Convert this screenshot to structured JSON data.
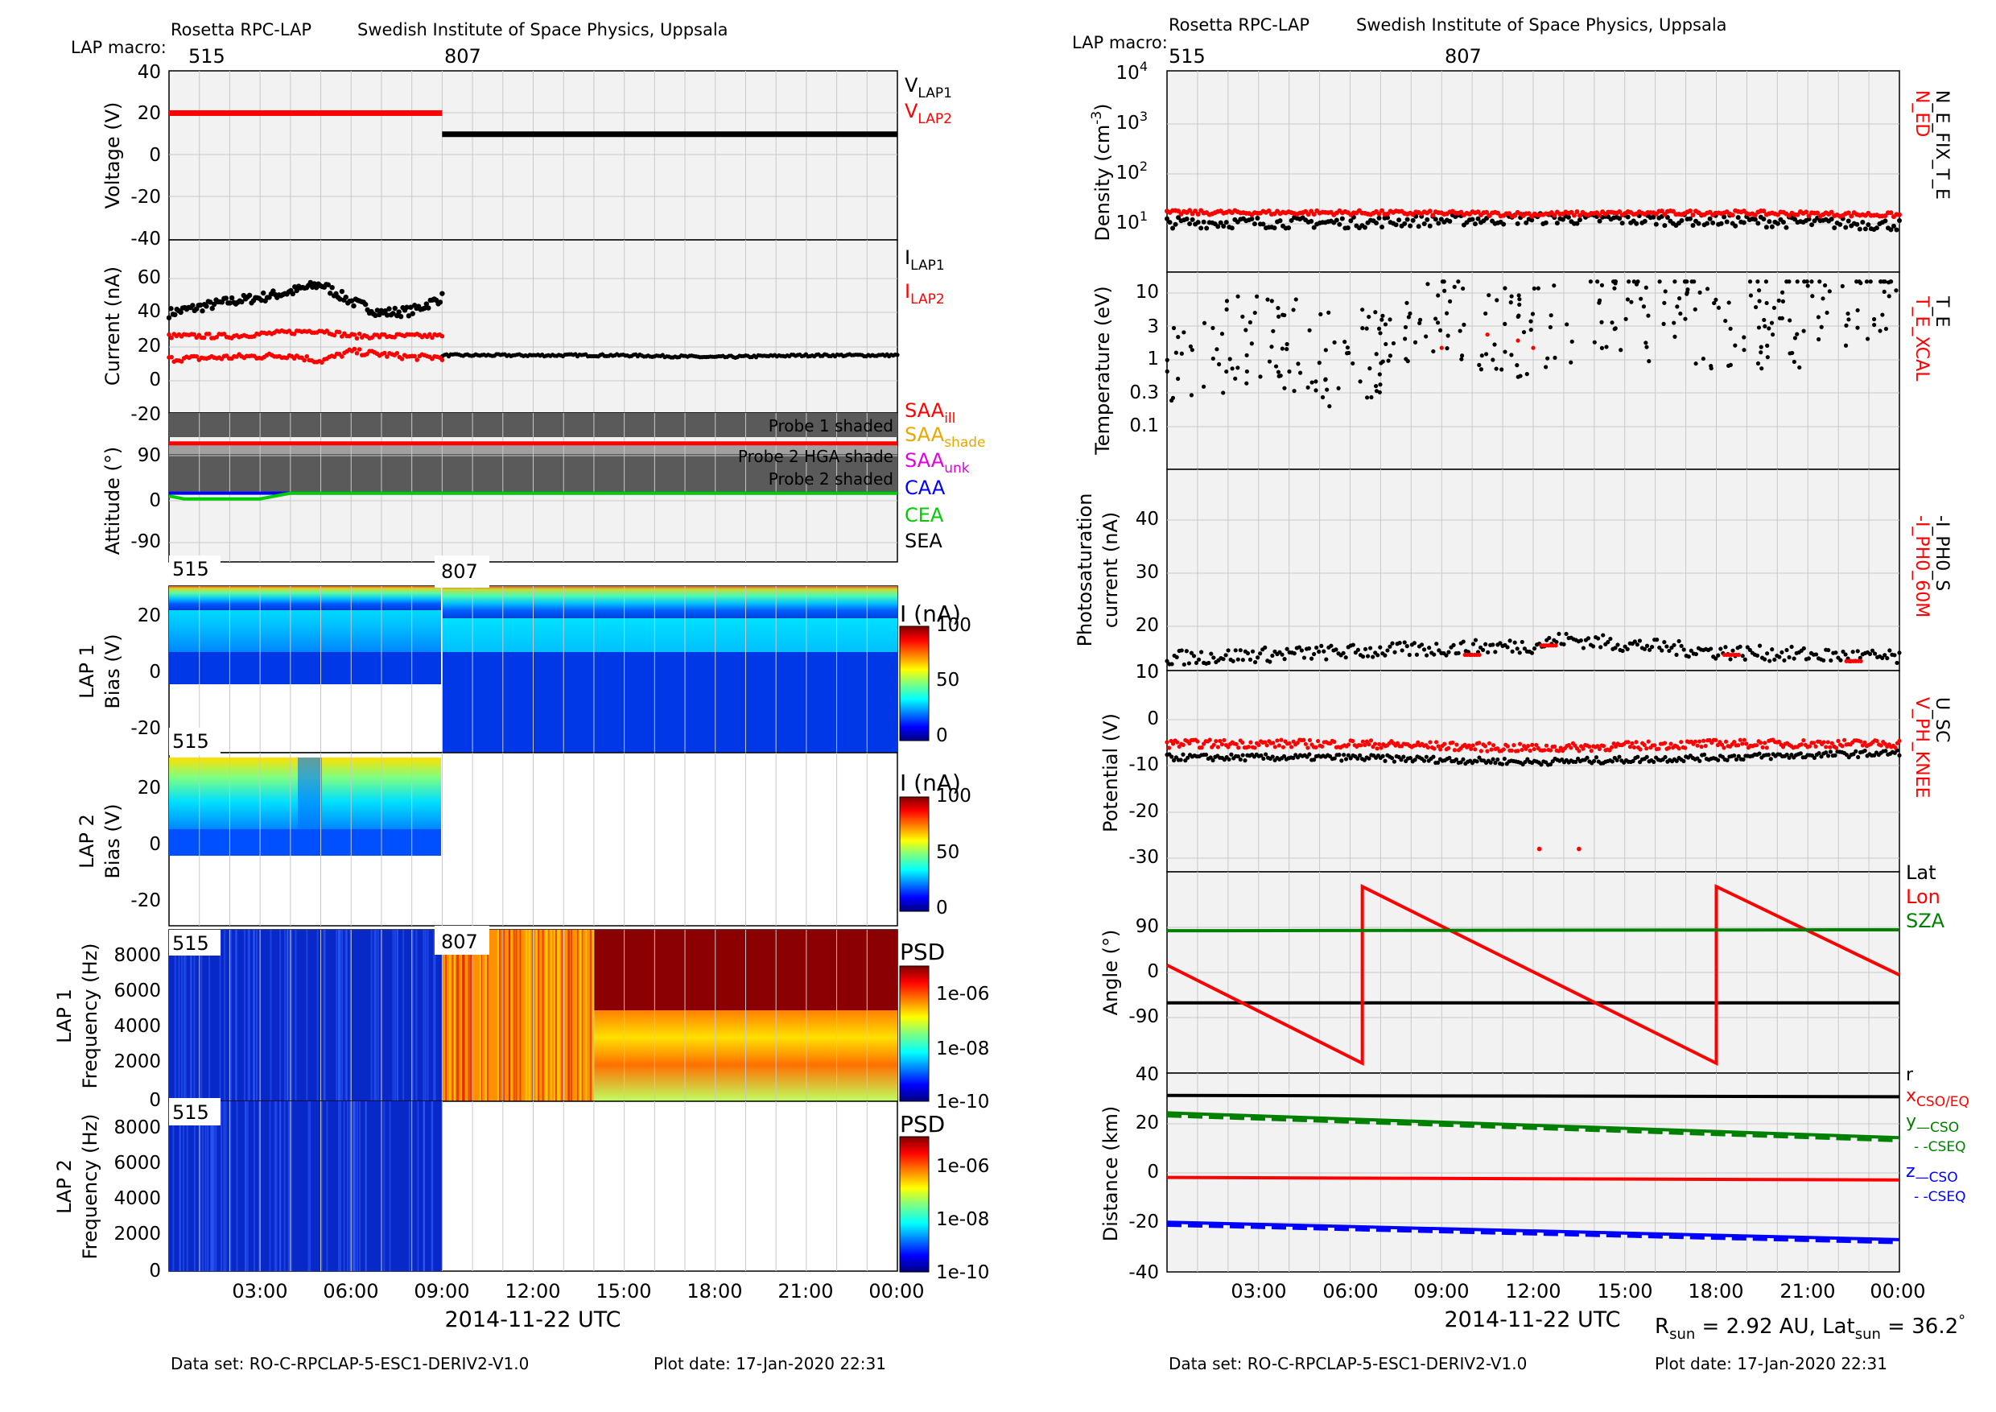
{
  "left": {
    "header_left": "Rosetta RPC-LAP",
    "header_right": "Swedish Institute of Space Physics, Uppsala",
    "macro_label": "LAP macro:",
    "macro_values": [
      "515",
      "807"
    ],
    "spec_macros": {
      "lap1_bias": [
        "515",
        "807"
      ],
      "lap2_bias": [
        "515"
      ],
      "lap1_freq": [
        "515",
        "807"
      ],
      "lap2_freq": [
        "515"
      ]
    },
    "x_ticks": [
      "03:00",
      "06:00",
      "09:00",
      "12:00",
      "15:00",
      "18:00",
      "21:00",
      "00:00"
    ],
    "x_title": "2014-11-22 UTC",
    "footer_dataset": "Data set: RO-C-RPCLAP-5-ESC1-DERIV2-V1.0",
    "footer_plotdate": "Plot date: 17-Jan-2020 22:31",
    "voltage": {
      "ylabel": "Voltage (V)",
      "ticks": [
        "40",
        "20",
        "0",
        "-20",
        "-40"
      ],
      "legend": [
        {
          "base": "V",
          "sub": "LAP1",
          "color": "#000000"
        },
        {
          "base": "V",
          "sub": "LAP2",
          "color": "#ff0000"
        }
      ]
    },
    "current": {
      "ylabel": "Current (nA)",
      "ticks": [
        "60",
        "40",
        "20",
        "0",
        "-20"
      ],
      "legend": [
        {
          "base": "I",
          "sub": "LAP1",
          "color": "#000000"
        },
        {
          "base": "I",
          "sub": "LAP2",
          "color": "#ff0000"
        }
      ]
    },
    "attitude": {
      "ylabel": "Attitude (°)",
      "ticks": [
        "90",
        "0",
        "-90"
      ],
      "band_labels": [
        "Probe 1 shaded",
        "Probe 2 HGA shade",
        "Probe 2 shaded"
      ],
      "legend": [
        {
          "base": "SAA",
          "sub": "ill",
          "color": "#ff0000"
        },
        {
          "base": "SAA",
          "sub": "shade",
          "color": "#e8a800"
        },
        {
          "base": "SAA",
          "sub": "unk",
          "color": "#e000e0"
        },
        {
          "base": "CAA",
          "sub": "",
          "color": "#0000ff"
        },
        {
          "base": "CEA",
          "sub": "",
          "color": "#00cc00"
        },
        {
          "base": "SEA",
          "sub": "",
          "color": "#000000"
        }
      ]
    },
    "lap1_bias": {
      "ylabel": [
        "LAP 1",
        "Bias (V)"
      ],
      "ticks": [
        "20",
        "0",
        "-20"
      ],
      "cbar_title": "I (nA)",
      "cbar_ticks": [
        "100",
        "50",
        "0"
      ]
    },
    "lap2_bias": {
      "ylabel": [
        "LAP 2",
        "Bias (V)"
      ],
      "ticks": [
        "20",
        "0",
        "-20"
      ],
      "cbar_title": "I (nA)",
      "cbar_ticks": [
        "100",
        "50",
        "0"
      ]
    },
    "lap1_freq": {
      "ylabel": [
        "LAP 1",
        "Frequency (Hz)"
      ],
      "ticks": [
        "8000",
        "6000",
        "4000",
        "2000",
        "0"
      ],
      "cbar_title": "PSD",
      "cbar_ticks": [
        "1e-06",
        "1e-08",
        "1e-10"
      ]
    },
    "lap2_freq": {
      "ylabel": [
        "LAP 2",
        "Frequency (Hz)"
      ],
      "ticks": [
        "8000",
        "6000",
        "4000",
        "2000",
        "0"
      ],
      "cbar_title": "PSD",
      "cbar_ticks": [
        "1e-06",
        "1e-08",
        "1e-10"
      ]
    }
  },
  "right": {
    "header_left": "Rosetta RPC-LAP",
    "header_right": "Swedish Institute of Space Physics, Uppsala",
    "macro_label": "LAP macro:",
    "macro_values": [
      "515",
      "807"
    ],
    "x_ticks": [
      "03:00",
      "06:00",
      "09:00",
      "12:00",
      "15:00",
      "18:00",
      "21:00",
      "00:00"
    ],
    "x_title": "2014-11-22 UTC",
    "rsun_label": "R",
    "rsun_sub": "sun",
    "rsun_mid": " = 2.92 AU, Lat",
    "lat_sub": "sun",
    "lat_val": " = 36.2",
    "degree": "°",
    "footer_dataset": "Data set: RO-C-RPCLAP-5-ESC1-DERIV2-V1.0",
    "footer_plotdate": "Plot date: 17-Jan-2020 22:31",
    "density": {
      "ylabel": "Density (cm",
      "ylabel_sup": "-3",
      "ylabel_end": ")",
      "ticks": [
        {
          "b": "10",
          "e": "4"
        },
        {
          "b": "10",
          "e": "3"
        },
        {
          "b": "10",
          "e": "2"
        },
        {
          "b": "10",
          "e": "1"
        }
      ],
      "legend_red": "N_ED",
      "legend_black": "N_E_FIX_T_E"
    },
    "temperature": {
      "ylabel": "Temperature (eV)",
      "ticks": [
        "10",
        "3",
        "1",
        "0.3",
        "0.1"
      ],
      "legend_red": "T_E_XCAL",
      "legend_black": "T_E"
    },
    "photo": {
      "ylabel": [
        "Photosaturation",
        "current (nA)"
      ],
      "ticks": [
        "40",
        "30",
        "20",
        "10"
      ],
      "legend_red": "-I_PH0_60M",
      "legend_black": "-I_PH0_S"
    },
    "potential": {
      "ylabel": "Potential (V)",
      "ticks": [
        "10",
        "0",
        "-10",
        "-20",
        "-30"
      ],
      "legend_red": "V_PH_KNEE",
      "legend_black": "U_SC"
    },
    "angle": {
      "ylabel": "Angle (°)",
      "ticks": [
        "90",
        "0",
        "-90",
        "40"
      ],
      "legend": [
        {
          "t": "Lat",
          "color": "#000000"
        },
        {
          "t": "Lon",
          "color": "#ff0000"
        },
        {
          "t": "SZA",
          "color": "#008000"
        }
      ]
    },
    "distance": {
      "ylabel": "Distance (km)",
      "ticks": [
        "20",
        "0",
        "-20",
        "-40"
      ],
      "legend": [
        {
          "base": "r",
          "sub": "",
          "color": "#000000"
        },
        {
          "base": "x",
          "sub": "CSO/EQ",
          "color": "#ff0000"
        },
        {
          "base": "y",
          "sub": "—CSO",
          "color": "#008000"
        },
        {
          "base": "",
          "sub": "- -CSEQ",
          "color": "#008000"
        },
        {
          "base": "z",
          "sub": "—CSO",
          "color": "#0000ff"
        },
        {
          "base": "",
          "sub": "- -CSEQ",
          "color": "#0000ff"
        }
      ]
    }
  },
  "chart_data": [
    {
      "type": "line",
      "panel": "Voltage",
      "x_unit": "hours UTC 2014-11-22",
      "ylim": [
        -40,
        40
      ],
      "series": [
        {
          "name": "V_LAP2",
          "color": "#ff0000",
          "x": [
            0,
            9
          ],
          "y": [
            20,
            20
          ]
        },
        {
          "name": "V_LAP1",
          "color": "#000000",
          "x": [
            9,
            24
          ],
          "y": [
            10,
            10
          ]
        }
      ]
    },
    {
      "type": "scatter",
      "panel": "Current",
      "ylim": [
        -20,
        70
      ],
      "series": [
        {
          "name": "I_LAP1",
          "color": "#000000",
          "x": [
            0,
            1,
            2,
            3,
            4,
            5,
            6,
            7,
            8,
            9,
            9.01,
            12,
            15,
            18,
            21,
            24
          ],
          "y": [
            32,
            35,
            38,
            40,
            43,
            47,
            38,
            32,
            33,
            40,
            10,
            10,
            10,
            9,
            10,
            10
          ]
        },
        {
          "name": "I_LAP2",
          "color": "#ff0000",
          "x": [
            0,
            2,
            4,
            5,
            6,
            8,
            9
          ],
          "y": [
            20,
            20,
            22,
            23,
            20,
            20,
            20
          ]
        },
        {
          "name": "I_LAP2",
          "color": "#ff0000",
          "x": [
            0,
            2,
            4,
            5,
            6,
            8,
            9
          ],
          "y": [
            8,
            9,
            10,
            7,
            12,
            9,
            9
          ]
        }
      ]
    },
    {
      "type": "line",
      "panel": "Attitude",
      "ylim": [
        -120,
        140
      ],
      "series": [
        {
          "name": "SAA",
          "color": "#ff0000",
          "x": [
            0,
            24
          ],
          "y": [
            87,
            87
          ]
        },
        {
          "name": "CAA",
          "color": "#0000ff",
          "x": [
            0,
            24
          ],
          "y": [
            0,
            0
          ]
        },
        {
          "name": "CEA",
          "color": "#00cc00",
          "x": [
            0,
            0.5,
            3,
            4,
            24
          ],
          "y": [
            -5,
            -10,
            -10,
            0,
            0
          ]
        }
      ]
    },
    {
      "type": "scatter",
      "panel": "Density",
      "yscale": "log",
      "ylim": [
        3,
        10000
      ],
      "series": [
        {
          "name": "N_ED",
          "color": "#ff0000",
          "x": [
            0,
            6,
            12,
            18,
            24
          ],
          "y": [
            33,
            33,
            31,
            33,
            30
          ]
        },
        {
          "name": "N_E_FIX_T_E",
          "color": "#000000",
          "x": [
            0,
            6,
            12,
            18,
            24
          ],
          "y": [
            22,
            22,
            26,
            24,
            20
          ]
        }
      ]
    },
    {
      "type": "scatter",
      "panel": "Temperature",
      "yscale": "log",
      "ylim": [
        0.05,
        20
      ],
      "series": [
        {
          "name": "T_E",
          "color": "#000000",
          "x": [
            0,
            3,
            6,
            9,
            12,
            15,
            18,
            21,
            24
          ],
          "y": [
            1,
            3,
            1,
            5,
            3,
            6,
            4,
            5,
            6
          ]
        },
        {
          "name": "T_E_XCAL",
          "color": "#ff0000",
          "x": [
            9,
            10.5,
            11.5,
            12
          ],
          "y": [
            2,
            3,
            2.5,
            2
          ]
        }
      ]
    },
    {
      "type": "scatter",
      "panel": "Photosaturation current",
      "ylim": [
        9,
        41
      ],
      "series": [
        {
          "name": "-I_PH0_S",
          "color": "#000000",
          "x": [
            0,
            6,
            12,
            13,
            18,
            24
          ],
          "y": [
            11,
            12,
            13,
            14,
            12,
            11
          ]
        },
        {
          "name": "-I_PH0_60M",
          "color": "#ff0000",
          "x": [
            10,
            12.5,
            18.5,
            22.5
          ],
          "y": [
            11.5,
            13,
            11.5,
            10.5
          ]
        }
      ]
    },
    {
      "type": "scatter",
      "panel": "Potential",
      "ylim": [
        -32,
        12
      ],
      "series": [
        {
          "name": "V_PH_KNEE",
          "color": "#ff0000",
          "x": [
            0,
            6,
            12,
            18,
            24
          ],
          "y": [
            -4,
            -4,
            -5,
            -4,
            -4
          ]
        },
        {
          "name": "U_SC",
          "color": "#000000",
          "x": [
            0,
            6,
            12,
            18,
            24
          ],
          "y": [
            -7,
            -7,
            -8,
            -7,
            -6
          ]
        }
      ]
    },
    {
      "type": "line",
      "panel": "Angle",
      "ylim": [
        -200,
        210
      ],
      "series": [
        {
          "name": "Lat",
          "color": "#000000",
          "x": [
            0,
            24
          ],
          "y": [
            -57,
            -57
          ]
        },
        {
          "name": "Lon",
          "color": "#ff0000",
          "x": [
            0,
            6.4,
            6.4,
            18,
            18,
            24
          ],
          "y": [
            20,
            -180,
            180,
            -180,
            180,
            0
          ]
        },
        {
          "name": "SZA",
          "color": "#008000",
          "x": [
            0,
            24
          ],
          "y": [
            90,
            92
          ]
        }
      ]
    },
    {
      "type": "line",
      "panel": "Distance",
      "ylim": [
        -40,
        40
      ],
      "series": [
        {
          "name": "r",
          "color": "#000000",
          "x": [
            0,
            24
          ],
          "y": [
            31,
            30.5
          ]
        },
        {
          "name": "x",
          "color": "#ff0000",
          "x": [
            0,
            24
          ],
          "y": [
            -2,
            -3
          ]
        },
        {
          "name": "y",
          "color": "#008000",
          "x": [
            0,
            24
          ],
          "y": [
            24,
            14
          ]
        },
        {
          "name": "z",
          "color": "#0000ff",
          "x": [
            0,
            24
          ],
          "y": [
            -20,
            -27
          ]
        }
      ]
    }
  ]
}
